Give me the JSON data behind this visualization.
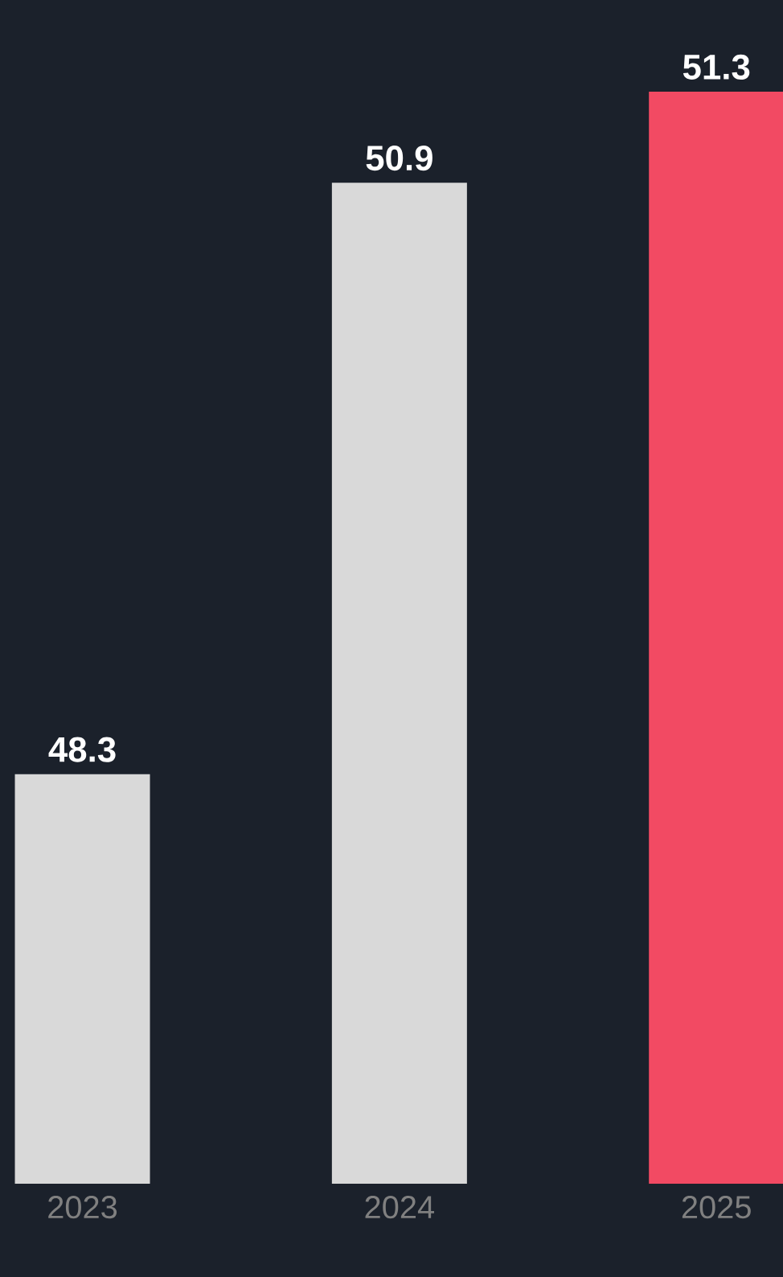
{
  "chart_data": {
    "type": "bar",
    "categories": [
      "2023",
      "2024",
      "2025"
    ],
    "values": [
      48.3,
      50.9,
      51.3
    ],
    "colors": [
      "#d9d9d9",
      "#d9d9d9",
      "#f24a63"
    ],
    "ylim": [
      46.5,
      51.3
    ],
    "data_labels": true
  }
}
